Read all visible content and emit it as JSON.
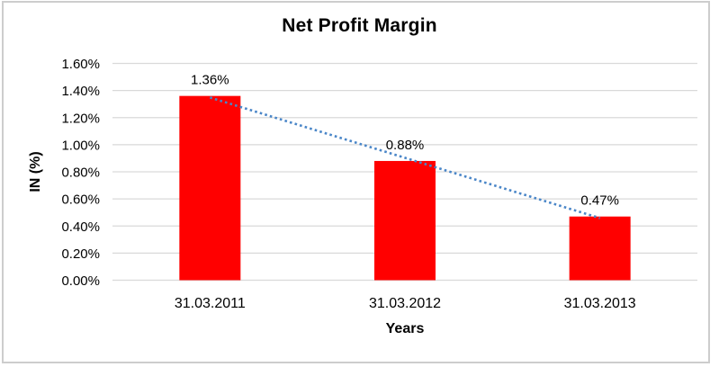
{
  "chart_data": {
    "type": "bar",
    "title": "Net Profit Margin",
    "xlabel": "Years",
    "ylabel": "IN (%)",
    "categories": [
      "31.03.2011",
      "31.03.2012",
      "31.03.2013"
    ],
    "values": [
      1.36,
      0.88,
      0.47
    ],
    "data_labels": [
      "1.36%",
      "0.88%",
      "0.47%"
    ],
    "ytick_labels": [
      "0.00%",
      "0.20%",
      "0.40%",
      "0.60%",
      "0.80%",
      "1.00%",
      "1.20%",
      "1.40%",
      "1.60%"
    ],
    "ylim": [
      0,
      1.6
    ],
    "grid": true,
    "legend": false,
    "trendline": {
      "type": "linear",
      "style": "dotted",
      "color": "#4a86c8"
    },
    "colors": {
      "bar": "#ff0000",
      "gridline": "#d9d9d9",
      "text": "#000000",
      "border": "#cdcdcd",
      "background": "#ffffff"
    }
  }
}
